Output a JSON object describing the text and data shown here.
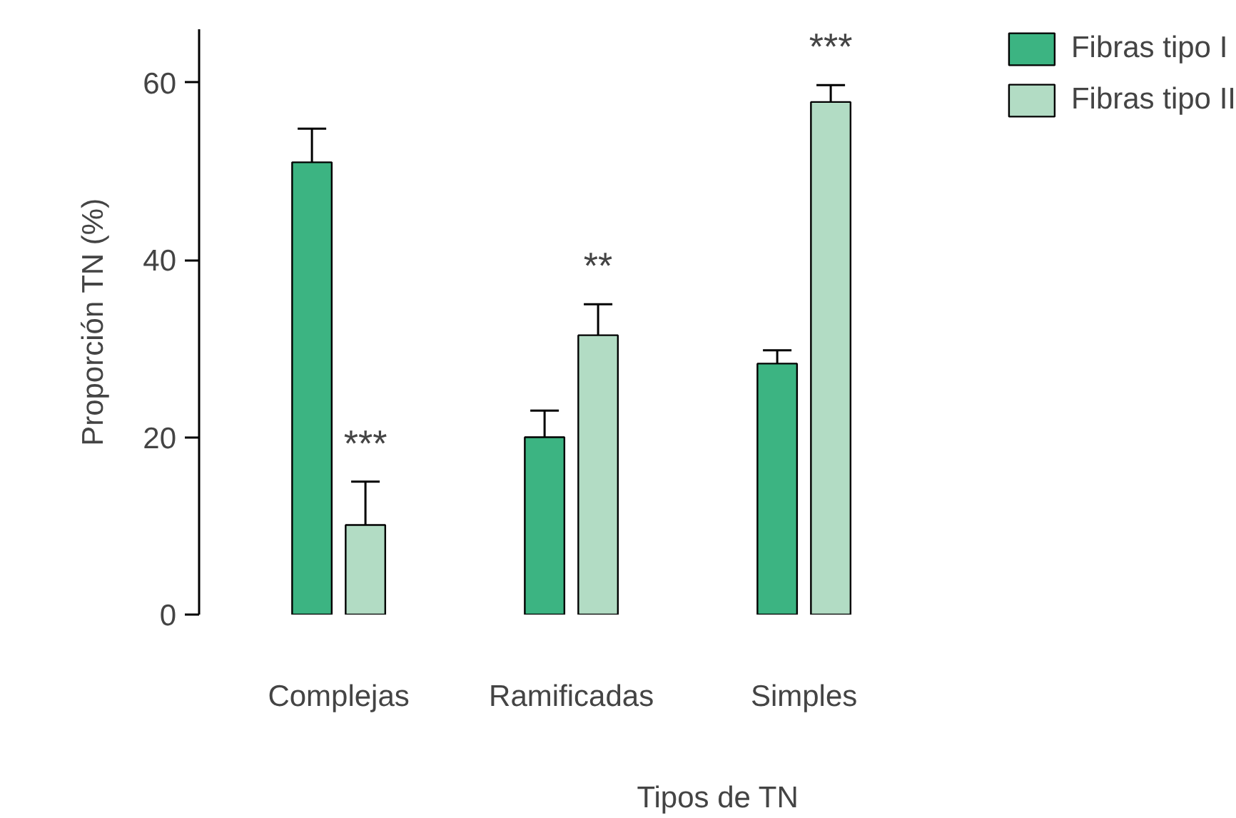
{
  "chart_data": {
    "type": "bar",
    "xlabel": "Tipos de TN",
    "ylabel": "Proporción TN (%)",
    "categories": [
      "Complejas",
      "Ramificadas",
      "Simples"
    ],
    "series": [
      {
        "name": "Fibras tipo I",
        "color": "#3cb482",
        "values": [
          51,
          20,
          28.3
        ],
        "errors": [
          [
            51,
            54.8
          ],
          [
            20,
            23
          ],
          [
            28.3,
            29.8
          ]
        ]
      },
      {
        "name": "Fibras tipo II",
        "color": "#b2dcc4",
        "values": [
          10.1,
          31.5,
          57.8
        ],
        "errors": [
          [
            10.1,
            15
          ],
          [
            31.5,
            35
          ],
          [
            57.8,
            59.7
          ]
        ]
      }
    ],
    "ylim": [
      0,
      66
    ],
    "yticks": [
      0,
      20,
      40,
      60
    ],
    "grid": false,
    "legend": "top right",
    "annotations": [
      "***",
      "**",
      "***"
    ]
  }
}
